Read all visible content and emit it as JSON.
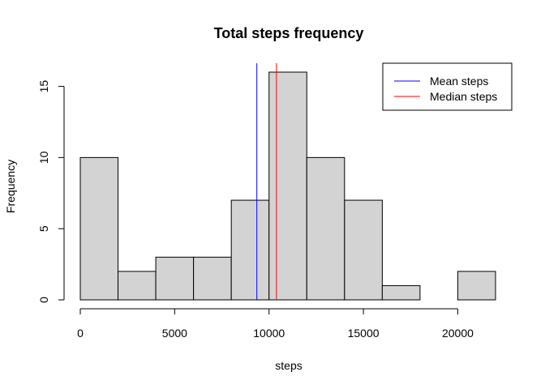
{
  "chart_data": {
    "type": "bar",
    "title": "Total steps frequency",
    "xlabel": "steps",
    "ylabel": "Frequency",
    "bins": [
      {
        "start": 0,
        "end": 2000,
        "count": 10
      },
      {
        "start": 2000,
        "end": 4000,
        "count": 2
      },
      {
        "start": 4000,
        "end": 6000,
        "count": 3
      },
      {
        "start": 6000,
        "end": 8000,
        "count": 3
      },
      {
        "start": 8000,
        "end": 10000,
        "count": 7
      },
      {
        "start": 10000,
        "end": 12000,
        "count": 16
      },
      {
        "start": 12000,
        "end": 14000,
        "count": 10
      },
      {
        "start": 14000,
        "end": 16000,
        "count": 7
      },
      {
        "start": 16000,
        "end": 18000,
        "count": 1
      },
      {
        "start": 18000,
        "end": 20000,
        "count": 0
      },
      {
        "start": 20000,
        "end": 22000,
        "count": 2
      }
    ],
    "xlim": [
      0,
      22000
    ],
    "ylim": [
      0,
      16
    ],
    "xticks": [
      0,
      5000,
      10000,
      15000,
      20000
    ],
    "yticks": [
      0,
      5,
      10,
      15
    ],
    "vlines": [
      {
        "name": "Mean steps",
        "x": 9354,
        "color": "#0000ff"
      },
      {
        "name": "Median steps",
        "x": 10395,
        "color": "#ff0000"
      }
    ],
    "bar_fill": "#d3d3d3",
    "bar_stroke": "#000000",
    "legend_position": "top-right",
    "grid": false
  }
}
